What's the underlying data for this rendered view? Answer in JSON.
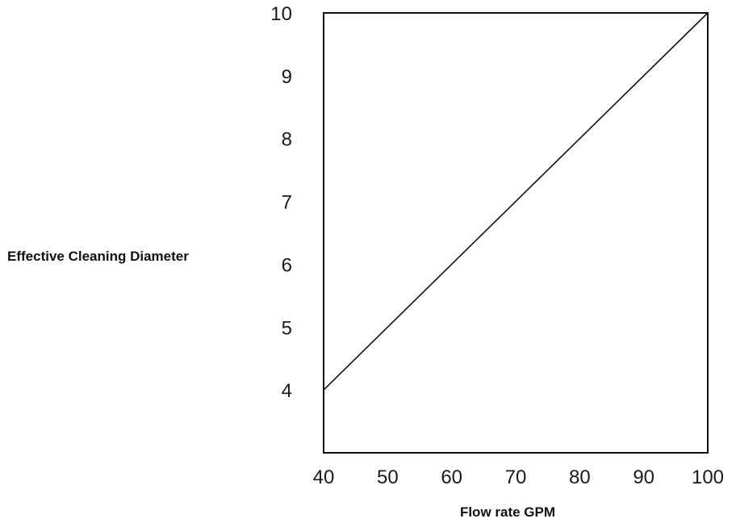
{
  "chart_data": {
    "type": "line",
    "title": "",
    "xlabel": "Flow rate GPM",
    "ylabel": "Effective Cleaning Diameter",
    "xlim": [
      40,
      100
    ],
    "ylim": [
      3,
      10
    ],
    "x_ticks": [
      40,
      50,
      60,
      70,
      80,
      90,
      100
    ],
    "y_ticks": [
      4,
      5,
      6,
      7,
      8,
      9,
      10
    ],
    "grid": false,
    "legend": "none",
    "series": [
      {
        "x": [
          40,
          100
        ],
        "y": [
          4,
          10
        ]
      }
    ]
  }
}
